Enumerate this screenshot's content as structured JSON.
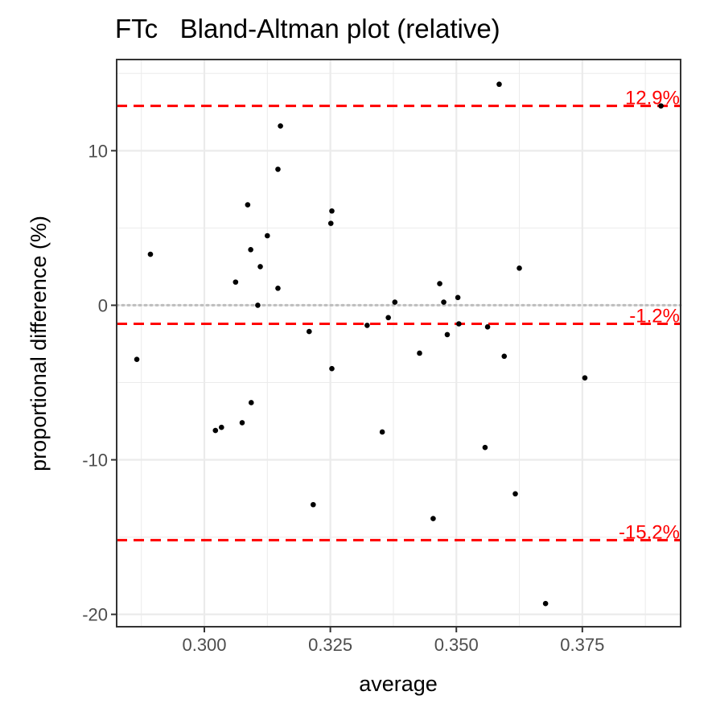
{
  "chart_data": {
    "type": "scatter",
    "title": "FTc   Bland-Altman plot (relative)",
    "xlabel": "average",
    "ylabel": "proportional difference (%)",
    "xlim": [
      0.2826,
      0.3945
    ],
    "ylim": [
      -20.8,
      15.9
    ],
    "xticks": [
      0.3,
      0.325,
      0.35,
      0.375
    ],
    "xtick_labels": [
      "0.300",
      "0.325",
      "0.350",
      "0.375"
    ],
    "yticks": [
      -20,
      -10,
      0,
      10
    ],
    "ytick_labels": [
      "-20",
      "-10",
      "0",
      "10"
    ],
    "grid": true,
    "zero_line": 0,
    "reference_lines": [
      {
        "value": 12.9,
        "label": "12.9%"
      },
      {
        "value": -1.2,
        "label": "-1.2%"
      },
      {
        "value": -15.2,
        "label": "-15.2%"
      }
    ],
    "colors": {
      "points": "#000000",
      "reference_lines": "#ff0000",
      "zero_line": "#bdbdbd",
      "grid": "#ebebeb"
    },
    "points": [
      {
        "x": 0.2866,
        "y": -3.5
      },
      {
        "x": 0.2893,
        "y": 3.3
      },
      {
        "x": 0.3022,
        "y": -8.1
      },
      {
        "x": 0.3034,
        "y": -7.9
      },
      {
        "x": 0.3062,
        "y": 1.5
      },
      {
        "x": 0.3075,
        "y": -7.6
      },
      {
        "x": 0.3086,
        "y": 6.5
      },
      {
        "x": 0.3092,
        "y": 3.6
      },
      {
        "x": 0.3093,
        "y": -6.3
      },
      {
        "x": 0.3106,
        "y": 0.0
      },
      {
        "x": 0.3111,
        "y": 2.5
      },
      {
        "x": 0.3125,
        "y": 4.5
      },
      {
        "x": 0.3146,
        "y": 8.8
      },
      {
        "x": 0.3146,
        "y": 1.1
      },
      {
        "x": 0.3151,
        "y": 11.6
      },
      {
        "x": 0.3208,
        "y": -1.7
      },
      {
        "x": 0.3216,
        "y": -12.9
      },
      {
        "x": 0.3251,
        "y": 5.3
      },
      {
        "x": 0.3253,
        "y": 6.1
      },
      {
        "x": 0.3253,
        "y": -4.1
      },
      {
        "x": 0.3323,
        "y": -1.3
      },
      {
        "x": 0.3353,
        "y": -8.2
      },
      {
        "x": 0.3365,
        "y": -0.8
      },
      {
        "x": 0.3378,
        "y": 0.2
      },
      {
        "x": 0.3427,
        "y": -3.1
      },
      {
        "x": 0.3454,
        "y": -13.8
      },
      {
        "x": 0.3467,
        "y": 1.4
      },
      {
        "x": 0.3475,
        "y": 0.2
      },
      {
        "x": 0.3482,
        "y": -1.9
      },
      {
        "x": 0.3503,
        "y": 0.5
      },
      {
        "x": 0.3505,
        "y": -1.2
      },
      {
        "x": 0.3557,
        "y": -9.2
      },
      {
        "x": 0.3562,
        "y": -1.4
      },
      {
        "x": 0.3585,
        "y": 14.3
      },
      {
        "x": 0.3595,
        "y": -3.3
      },
      {
        "x": 0.3617,
        "y": -12.2
      },
      {
        "x": 0.3625,
        "y": 2.4
      },
      {
        "x": 0.3677,
        "y": -19.3
      },
      {
        "x": 0.3755,
        "y": -4.7
      },
      {
        "x": 0.3906,
        "y": 12.9
      }
    ]
  }
}
